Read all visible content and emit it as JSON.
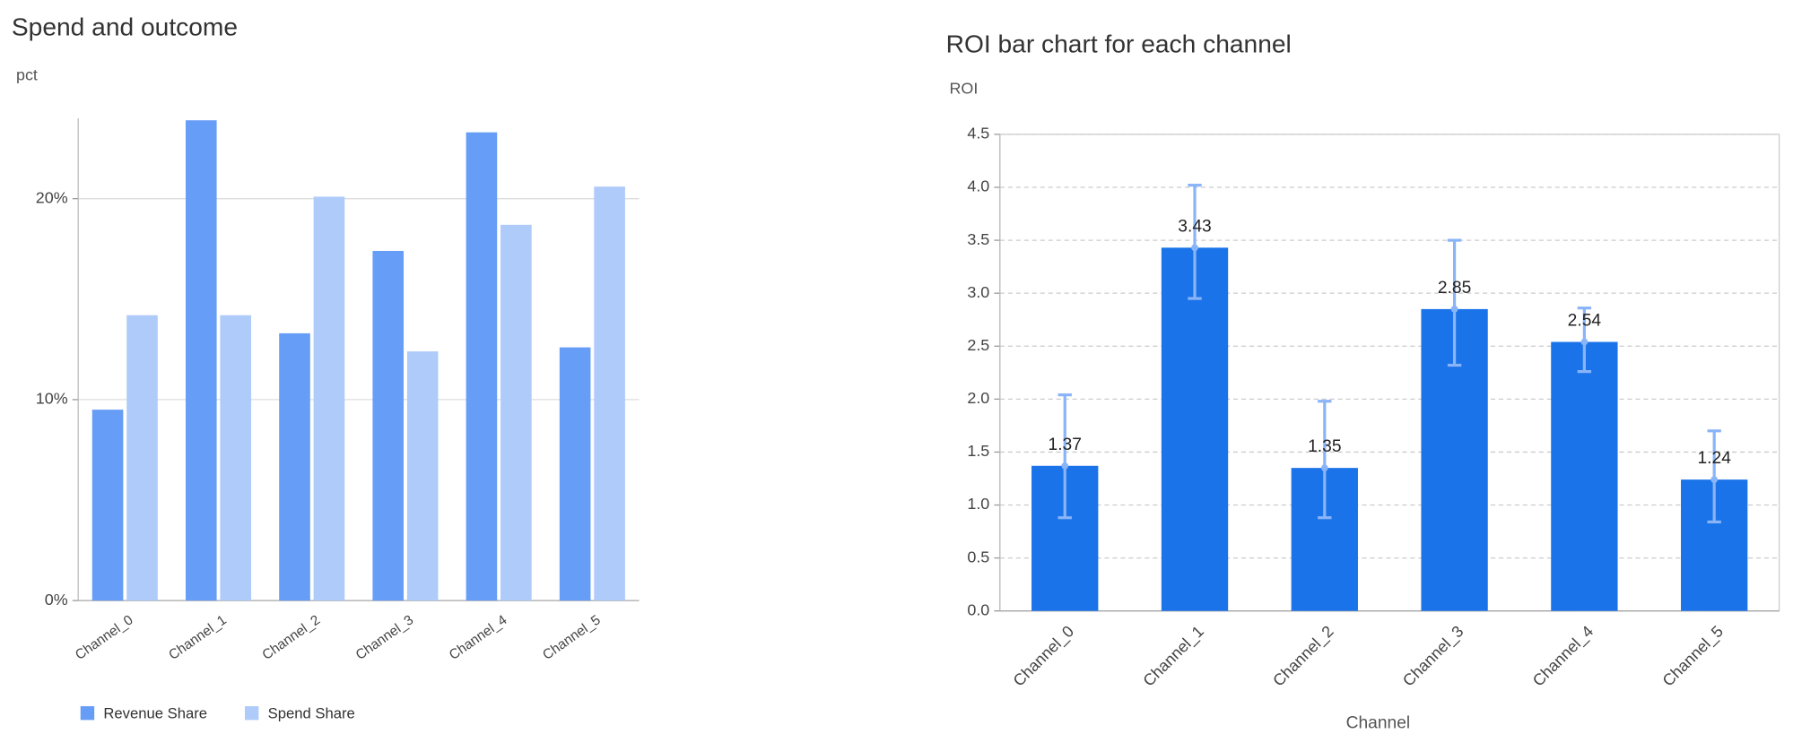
{
  "chart_data": [
    {
      "type": "bar",
      "title": "Spend and outcome",
      "y_label": "pct",
      "categories": [
        "Channel_0",
        "Channel_1",
        "Channel_2",
        "Channel_3",
        "Channel_4",
        "Channel_5"
      ],
      "series": [
        {
          "name": "Revenue Share",
          "color": "#669df6",
          "values": [
            9.5,
            23.9,
            13.3,
            17.4,
            23.3,
            12.6
          ]
        },
        {
          "name": "Spend Share",
          "color": "#aecbfa",
          "values": [
            14.2,
            14.2,
            20.1,
            12.4,
            18.7,
            20.6
          ]
        }
      ],
      "ylim": [
        0,
        24
      ],
      "yticks": [
        {
          "value": 0,
          "label": "0%"
        },
        {
          "value": 10,
          "label": "10%"
        },
        {
          "value": 20,
          "label": "20%"
        }
      ],
      "grid": true,
      "legend": "bottom-left"
    },
    {
      "type": "bar",
      "title": "ROI bar chart for each channel",
      "y_label": "ROI",
      "x_label": "Channel",
      "categories": [
        "Channel_0",
        "Channel_1",
        "Channel_2",
        "Channel_3",
        "Channel_4",
        "Channel_5"
      ],
      "values": [
        1.37,
        3.43,
        1.35,
        2.85,
        2.54,
        1.24
      ],
      "error_low": [
        0.88,
        2.95,
        0.88,
        2.32,
        2.26,
        0.84
      ],
      "error_high": [
        2.04,
        4.02,
        1.98,
        3.5,
        2.86,
        1.7
      ],
      "color": "#1a73e8",
      "error_color": "#8ab4f8",
      "ylim": [
        0,
        4.5
      ],
      "yticks": [
        {
          "value": 0,
          "label": "0.0"
        },
        {
          "value": 0.5,
          "label": "0.5"
        },
        {
          "value": 1,
          "label": "1.0"
        },
        {
          "value": 1.5,
          "label": "1.5"
        },
        {
          "value": 2,
          "label": "2.0"
        },
        {
          "value": 2.5,
          "label": "2.5"
        },
        {
          "value": 3,
          "label": "3.0"
        },
        {
          "value": 3.5,
          "label": "3.5"
        },
        {
          "value": 4,
          "label": "4.0"
        },
        {
          "value": 4.5,
          "label": "4.5"
        }
      ],
      "grid": true
    }
  ]
}
